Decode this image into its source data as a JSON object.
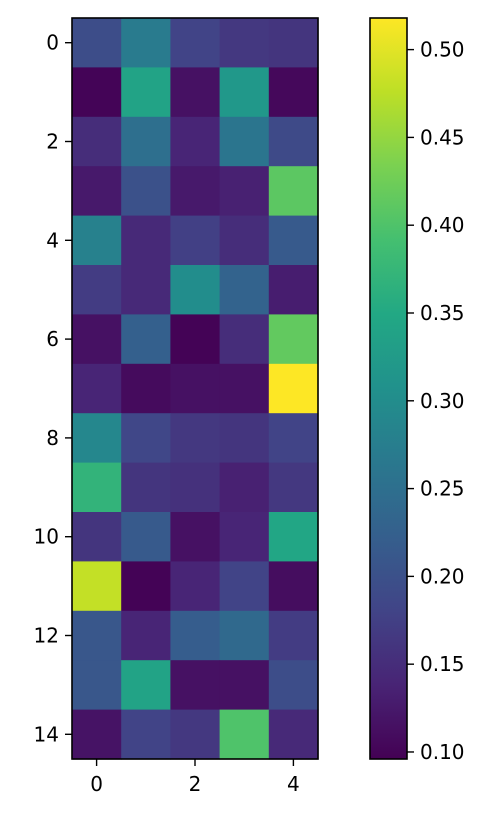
{
  "chart_data": {
    "type": "heatmap",
    "title": "",
    "xlabel": "",
    "ylabel": "",
    "x_ticks": [
      0,
      2,
      4
    ],
    "y_ticks": [
      0,
      2,
      4,
      6,
      8,
      10,
      12,
      14
    ],
    "colormap": "viridis",
    "colorbar": {
      "min": 0.096,
      "max": 0.518,
      "ticks": [
        0.1,
        0.15,
        0.2,
        0.25,
        0.3,
        0.35,
        0.4,
        0.45,
        0.5
      ],
      "tick_labels": [
        "0.10",
        "0.15",
        "0.20",
        "0.25",
        "0.30",
        "0.35",
        "0.40",
        "0.45",
        "0.50"
      ]
    },
    "rows": 15,
    "cols": 5,
    "values": [
      [
        0.195,
        0.27,
        0.18,
        0.165,
        0.16
      ],
      [
        0.1,
        0.34,
        0.115,
        0.32,
        0.105
      ],
      [
        0.15,
        0.25,
        0.14,
        0.26,
        0.19
      ],
      [
        0.125,
        0.2,
        0.125,
        0.135,
        0.41
      ],
      [
        0.28,
        0.145,
        0.175,
        0.15,
        0.215
      ],
      [
        0.17,
        0.145,
        0.3,
        0.23,
        0.13
      ],
      [
        0.115,
        0.225,
        0.098,
        0.15,
        0.415
      ],
      [
        0.14,
        0.108,
        0.115,
        0.115,
        0.518
      ],
      [
        0.29,
        0.185,
        0.165,
        0.16,
        0.18
      ],
      [
        0.37,
        0.16,
        0.155,
        0.135,
        0.165
      ],
      [
        0.16,
        0.215,
        0.115,
        0.14,
        0.345
      ],
      [
        0.48,
        0.098,
        0.14,
        0.18,
        0.11
      ],
      [
        0.21,
        0.14,
        0.22,
        0.24,
        0.17
      ],
      [
        0.21,
        0.34,
        0.115,
        0.115,
        0.195
      ],
      [
        0.118,
        0.18,
        0.165,
        0.4,
        0.145
      ]
    ]
  }
}
